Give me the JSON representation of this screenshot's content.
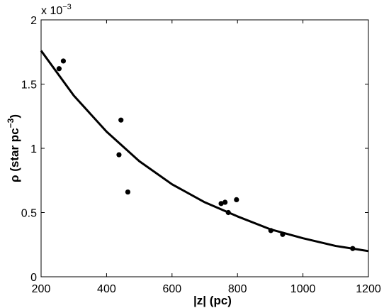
{
  "chart_data": {
    "type": "scatter",
    "title": "",
    "xlabel": "|z| (pc)",
    "ylabel_main": "ρ (star pc",
    "ylabel_sup": "−3",
    "ylabel_close": ")",
    "y_multiplier_base": "x 10",
    "y_multiplier_exp": "−3",
    "xlim": [
      200,
      1200
    ],
    "ylim": [
      0,
      2
    ],
    "xticks": [
      200,
      400,
      600,
      800,
      1000,
      1200
    ],
    "yticks": [
      0,
      0.5,
      1,
      1.5,
      2
    ],
    "xtick_labels": [
      "200",
      "400",
      "600",
      "800",
      "1000",
      "1200"
    ],
    "ytick_labels": [
      "0",
      "0.5",
      "1",
      "1.5",
      "2"
    ],
    "grid": false,
    "series": [
      {
        "kind": "points",
        "x": [
          255,
          268,
          438,
          444,
          465,
          750,
          762,
          772,
          797,
          902,
          938,
          1152
        ],
        "y": [
          1.62,
          1.68,
          0.95,
          1.22,
          0.66,
          0.57,
          0.58,
          0.5,
          0.6,
          0.36,
          0.33,
          0.22
        ]
      },
      {
        "kind": "fit-curve",
        "x": [
          200,
          300,
          400,
          500,
          600,
          700,
          800,
          900,
          1000,
          1100,
          1200
        ],
        "y": [
          1.76,
          1.41,
          1.13,
          0.9,
          0.72,
          0.58,
          0.47,
          0.37,
          0.3,
          0.24,
          0.2
        ]
      }
    ]
  }
}
